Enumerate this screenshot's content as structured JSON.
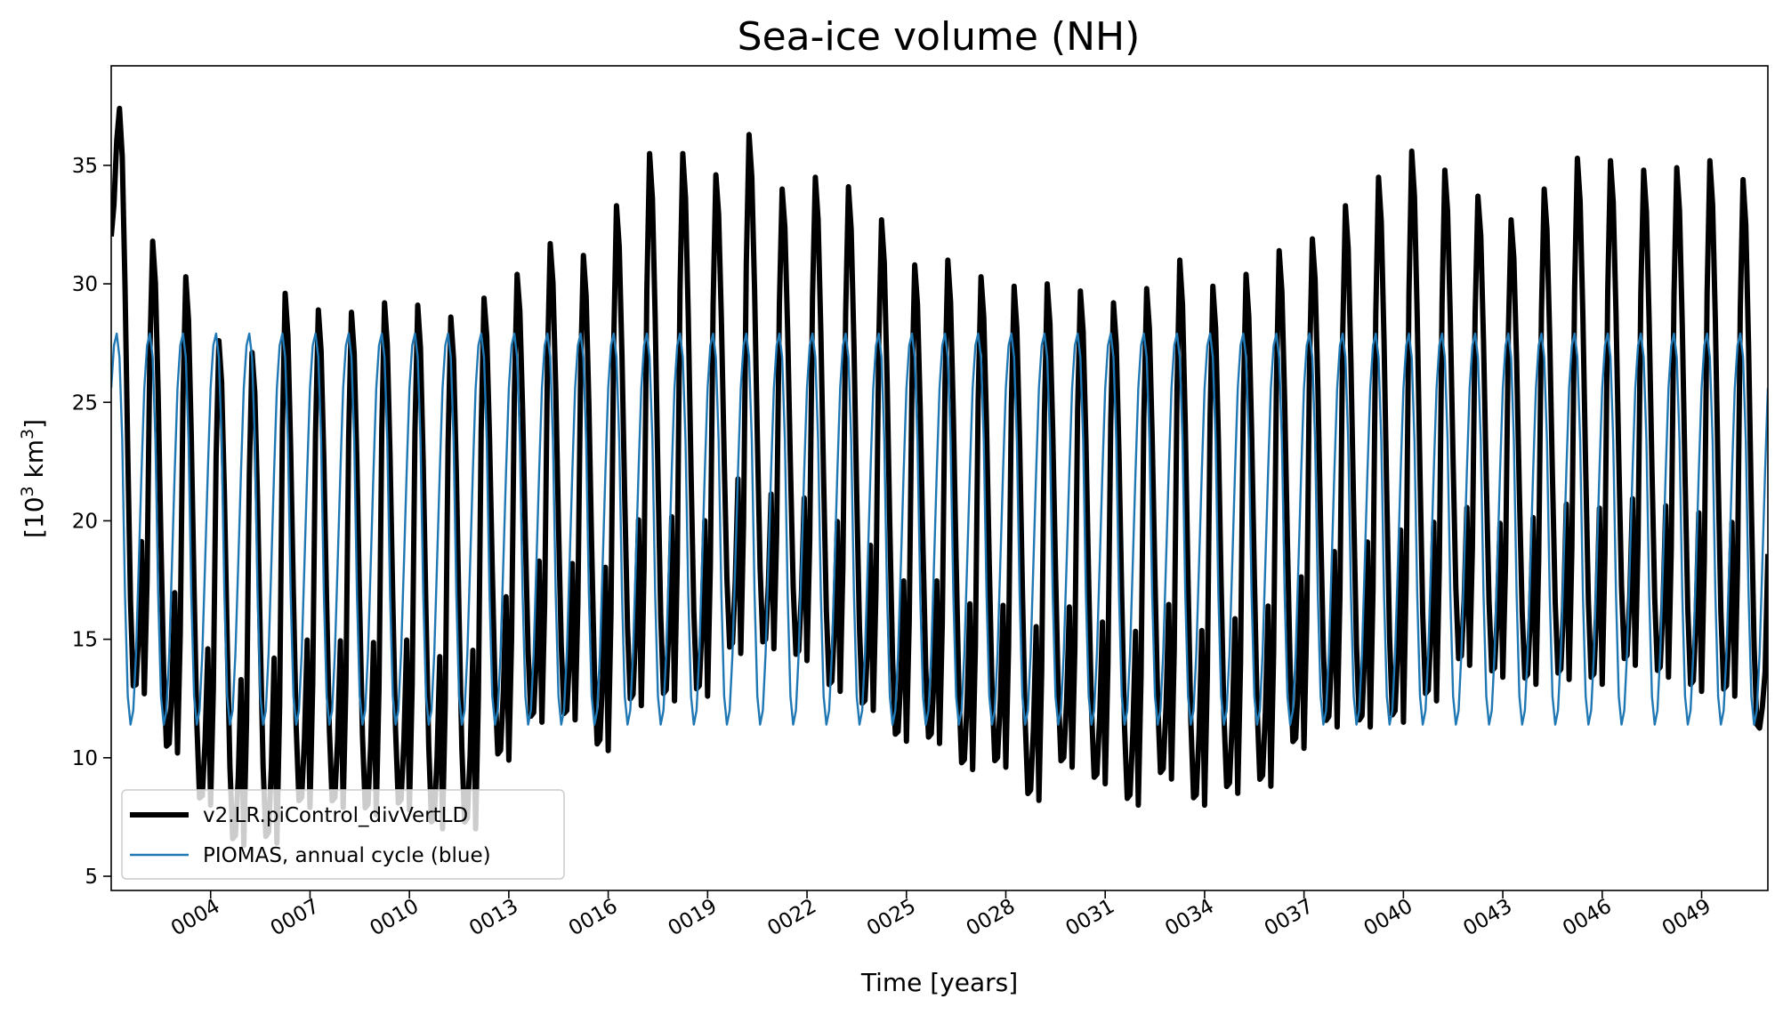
{
  "chart_data": {
    "type": "line",
    "title": "Sea-ice volume (NH)",
    "xlabel": "Time [years]",
    "ylabel_base": "[10",
    "ylabel_sup": "3",
    "ylabel_unit": " km",
    "ylabel_sup2": "3",
    "ylabel_end": "]",
    "xlim": [
      1.0,
      51.0
    ],
    "ylim": [
      4.4,
      39.2
    ],
    "yticks": [
      5,
      10,
      15,
      20,
      25,
      30,
      35
    ],
    "xticks": [
      {
        "value": 4,
        "label": "0004"
      },
      {
        "value": 7,
        "label": "0007"
      },
      {
        "value": 10,
        "label": "0010"
      },
      {
        "value": 13,
        "label": "0013"
      },
      {
        "value": 16,
        "label": "0016"
      },
      {
        "value": 19,
        "label": "0019"
      },
      {
        "value": 22,
        "label": "0022"
      },
      {
        "value": 25,
        "label": "0025"
      },
      {
        "value": 28,
        "label": "0028"
      },
      {
        "value": 31,
        "label": "0031"
      },
      {
        "value": 34,
        "label": "0034"
      },
      {
        "value": 37,
        "label": "0037"
      },
      {
        "value": 40,
        "label": "0040"
      },
      {
        "value": 43,
        "label": "0043"
      },
      {
        "value": 46,
        "label": "0046"
      },
      {
        "value": 49,
        "label": "0049"
      }
    ],
    "grid": false,
    "legend_position": "lower-left",
    "series": [
      {
        "name": "v2.LR.piControl_divVertLD",
        "color": "#000000",
        "sampling": "monthly, year 0001 to 0050",
        "annual_max": [
          37.4,
          31.8,
          30.3,
          27.6,
          27.1,
          29.6,
          28.9,
          28.8,
          29.2,
          29.1,
          28.6,
          29.4,
          30.4,
          31.7,
          31.2,
          33.3,
          35.5,
          35.5,
          34.6,
          36.3,
          34.0,
          34.5,
          34.1,
          32.7,
          30.8,
          31.0,
          30.3,
          29.9,
          30.0,
          29.7,
          29.2,
          29.8,
          31.0,
          29.9,
          30.4,
          31.4,
          31.9,
          33.3,
          34.5,
          35.6,
          34.8,
          33.7,
          32.7,
          34.0,
          35.3,
          35.2,
          34.8,
          34.9,
          35.2,
          34.4
        ],
        "annual_min": [
          12.7,
          10.2,
          8.0,
          6.3,
          6.4,
          7.9,
          7.9,
          7.6,
          7.8,
          7.0,
          7.0,
          9.9,
          11.5,
          11.6,
          10.3,
          12.2,
          12.4,
          12.6,
          14.4,
          14.6,
          14.1,
          12.8,
          12.0,
          10.7,
          10.6,
          9.5,
          9.6,
          8.2,
          9.6,
          8.9,
          8.0,
          9.1,
          8.0,
          8.5,
          8.8,
          10.4,
          11.3,
          11.3,
          11.5,
          12.4,
          13.9,
          13.4,
          13.1,
          13.3,
          13.1,
          13.9,
          13.4,
          12.8,
          12.6,
          11.1
        ],
        "start_value": 32.0,
        "end_value": 18.6
      },
      {
        "name": "PIOMAS, annual cycle (blue)",
        "color": "#1f77b4",
        "annual_cycle": [
          25.6,
          27.4,
          27.9,
          26.9,
          23.4,
          16.9,
          12.6,
          11.4,
          12.0,
          14.4,
          18.2,
          22.1
        ]
      }
    ]
  }
}
